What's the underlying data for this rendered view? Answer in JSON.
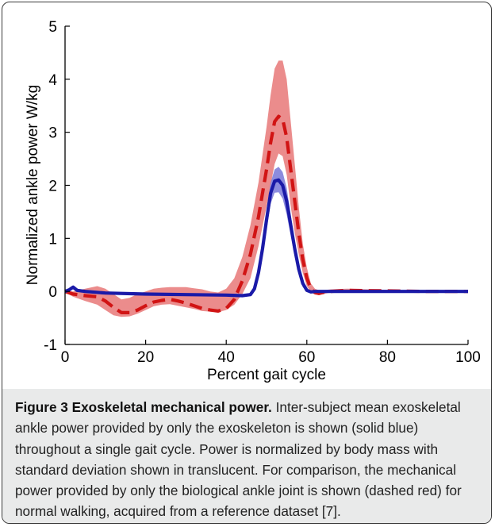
{
  "chart_data": {
    "type": "line",
    "xlabel": "Percent gait cycle",
    "ylabel": "Normalized ankle power W/kg",
    "xlim": [
      0,
      100
    ],
    "ylim": [
      -1,
      5
    ],
    "x_ticks": [
      "0",
      "20",
      "40",
      "60",
      "80",
      "100"
    ],
    "y_ticks": [
      "-1",
      "0",
      "1",
      "2",
      "3",
      "4",
      "5"
    ],
    "grid": false,
    "series": [
      {
        "style": "dashed",
        "color": "#d11414",
        "band_color": "#e87878",
        "x": [
          0,
          2,
          5,
          8,
          10,
          12,
          14,
          16,
          18,
          20,
          22,
          24,
          26,
          28,
          30,
          32,
          34,
          36,
          38,
          40,
          42,
          44,
          46,
          48,
          50,
          51,
          52,
          53,
          54,
          55,
          56,
          57,
          58,
          59,
          60,
          61,
          62,
          63,
          64,
          66,
          70,
          80,
          90,
          100
        ],
        "mean": [
          0,
          -0.05,
          -0.08,
          -0.1,
          -0.18,
          -0.3,
          -0.4,
          -0.4,
          -0.35,
          -0.27,
          -0.2,
          -0.17,
          -0.15,
          -0.18,
          -0.22,
          -0.27,
          -0.32,
          -0.35,
          -0.37,
          -0.32,
          -0.15,
          0.2,
          0.7,
          1.4,
          2.3,
          2.8,
          3.2,
          3.3,
          3.25,
          2.9,
          2.3,
          1.7,
          1.1,
          0.6,
          0.25,
          0.05,
          -0.02,
          -0.04,
          -0.02,
          0,
          0.02,
          0.01,
          0,
          0
        ],
        "upper": [
          0.02,
          0.0,
          0.05,
          0.1,
          0.05,
          -0.05,
          -0.15,
          -0.12,
          -0.05,
          0.0,
          0.05,
          0.07,
          0.08,
          0.08,
          0.08,
          0.06,
          0.04,
          0.0,
          -0.02,
          0.05,
          0.25,
          0.65,
          1.25,
          2.05,
          3.1,
          3.7,
          4.2,
          4.35,
          4.35,
          4.0,
          3.2,
          2.4,
          1.6,
          0.9,
          0.45,
          0.15,
          0.05,
          0.02,
          0.02,
          0.04,
          0.05,
          0.03,
          0.01,
          0.01
        ],
        "lower": [
          -0.02,
          -0.1,
          -0.18,
          -0.25,
          -0.35,
          -0.45,
          -0.48,
          -0.47,
          -0.42,
          -0.35,
          -0.28,
          -0.25,
          -0.24,
          -0.27,
          -0.3,
          -0.33,
          -0.37,
          -0.38,
          -0.39,
          -0.35,
          -0.25,
          -0.05,
          0.25,
          0.85,
          1.6,
          2.0,
          2.4,
          2.6,
          2.55,
          2.2,
          1.6,
          1.1,
          0.7,
          0.35,
          0.1,
          -0.02,
          -0.06,
          -0.07,
          -0.05,
          -0.02,
          0.0,
          0.0,
          -0.01,
          -0.01
        ]
      },
      {
        "style": "solid",
        "color": "#1a1aa8",
        "band_color": "#7878d8",
        "x": [
          0,
          1,
          2,
          3,
          5,
          10,
          20,
          30,
          40,
          44,
          46,
          47,
          48,
          49,
          50,
          51,
          52,
          53,
          54,
          55,
          56,
          57,
          58,
          59,
          60,
          61,
          62,
          64,
          70,
          80,
          90,
          100
        ],
        "mean": [
          0,
          0.03,
          0.08,
          0.02,
          0.0,
          -0.03,
          -0.05,
          -0.06,
          -0.07,
          -0.08,
          -0.06,
          0.05,
          0.35,
          0.8,
          1.35,
          1.85,
          2.08,
          2.1,
          2.0,
          1.7,
          1.25,
          0.8,
          0.42,
          0.15,
          0.02,
          -0.01,
          0.0,
          0.0,
          0.0,
          0.0,
          0.0,
          0.0
        ],
        "upper": [
          0.01,
          0.05,
          0.1,
          0.04,
          0.02,
          -0.01,
          -0.03,
          -0.04,
          -0.05,
          -0.06,
          -0.04,
          0.1,
          0.45,
          0.95,
          1.55,
          2.05,
          2.3,
          2.35,
          2.25,
          1.95,
          1.45,
          0.95,
          0.52,
          0.22,
          0.05,
          0.01,
          0.01,
          0.01,
          0.01,
          0.01,
          0.01,
          0.01
        ],
        "lower": [
          -0.01,
          0.01,
          0.06,
          0.0,
          -0.02,
          -0.05,
          -0.07,
          -0.08,
          -0.09,
          -0.1,
          -0.08,
          0.0,
          0.25,
          0.65,
          1.15,
          1.65,
          1.86,
          1.87,
          1.75,
          1.45,
          1.05,
          0.65,
          0.32,
          0.08,
          -0.01,
          -0.03,
          -0.01,
          -0.01,
          -0.01,
          -0.01,
          -0.01,
          -0.01
        ]
      }
    ]
  },
  "caption": {
    "title": "Figure 3 Exoskeletal mechanical power.",
    "body": " Inter-subject mean exoskeletal ankle power provided by only the exoskeleton is shown (solid blue) throughout a single gait cycle. Power is normalized by body mass with standard deviation shown in translucent. For comparison, the mechanical power provided by only the biological ankle joint is shown (dashed red) for normal walking, acquired from a reference dataset [7]."
  }
}
